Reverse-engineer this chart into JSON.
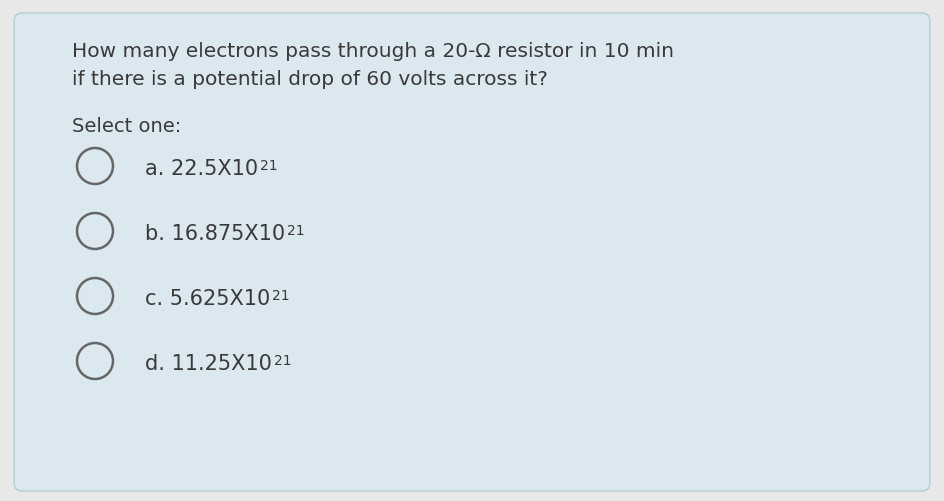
{
  "background_color": "#dce8f0",
  "outer_bg": "#e8e8e8",
  "question_line1": "How many electrons pass through a 20-Ω resistor in 10 min",
  "question_line2": "if there is a potential drop of 60 volts across it?",
  "select_one": "Select one:",
  "options": [
    {
      "label": "a. ",
      "base": "22.5X10",
      "exp": "21"
    },
    {
      "label": "b. ",
      "base": "16.875X10",
      "exp": "21"
    },
    {
      "label": "c. ",
      "base": "5.625X10",
      "exp": "21"
    },
    {
      "label": "d. ",
      "base": "11.25X10",
      "exp": "21"
    }
  ],
  "question_fontsize": 14.5,
  "select_fontsize": 14,
  "option_fontsize": 15,
  "exp_fontsize": 10,
  "text_color": "#3a3a3a",
  "circle_edge_color": "#666666",
  "circle_linewidth": 1.8
}
